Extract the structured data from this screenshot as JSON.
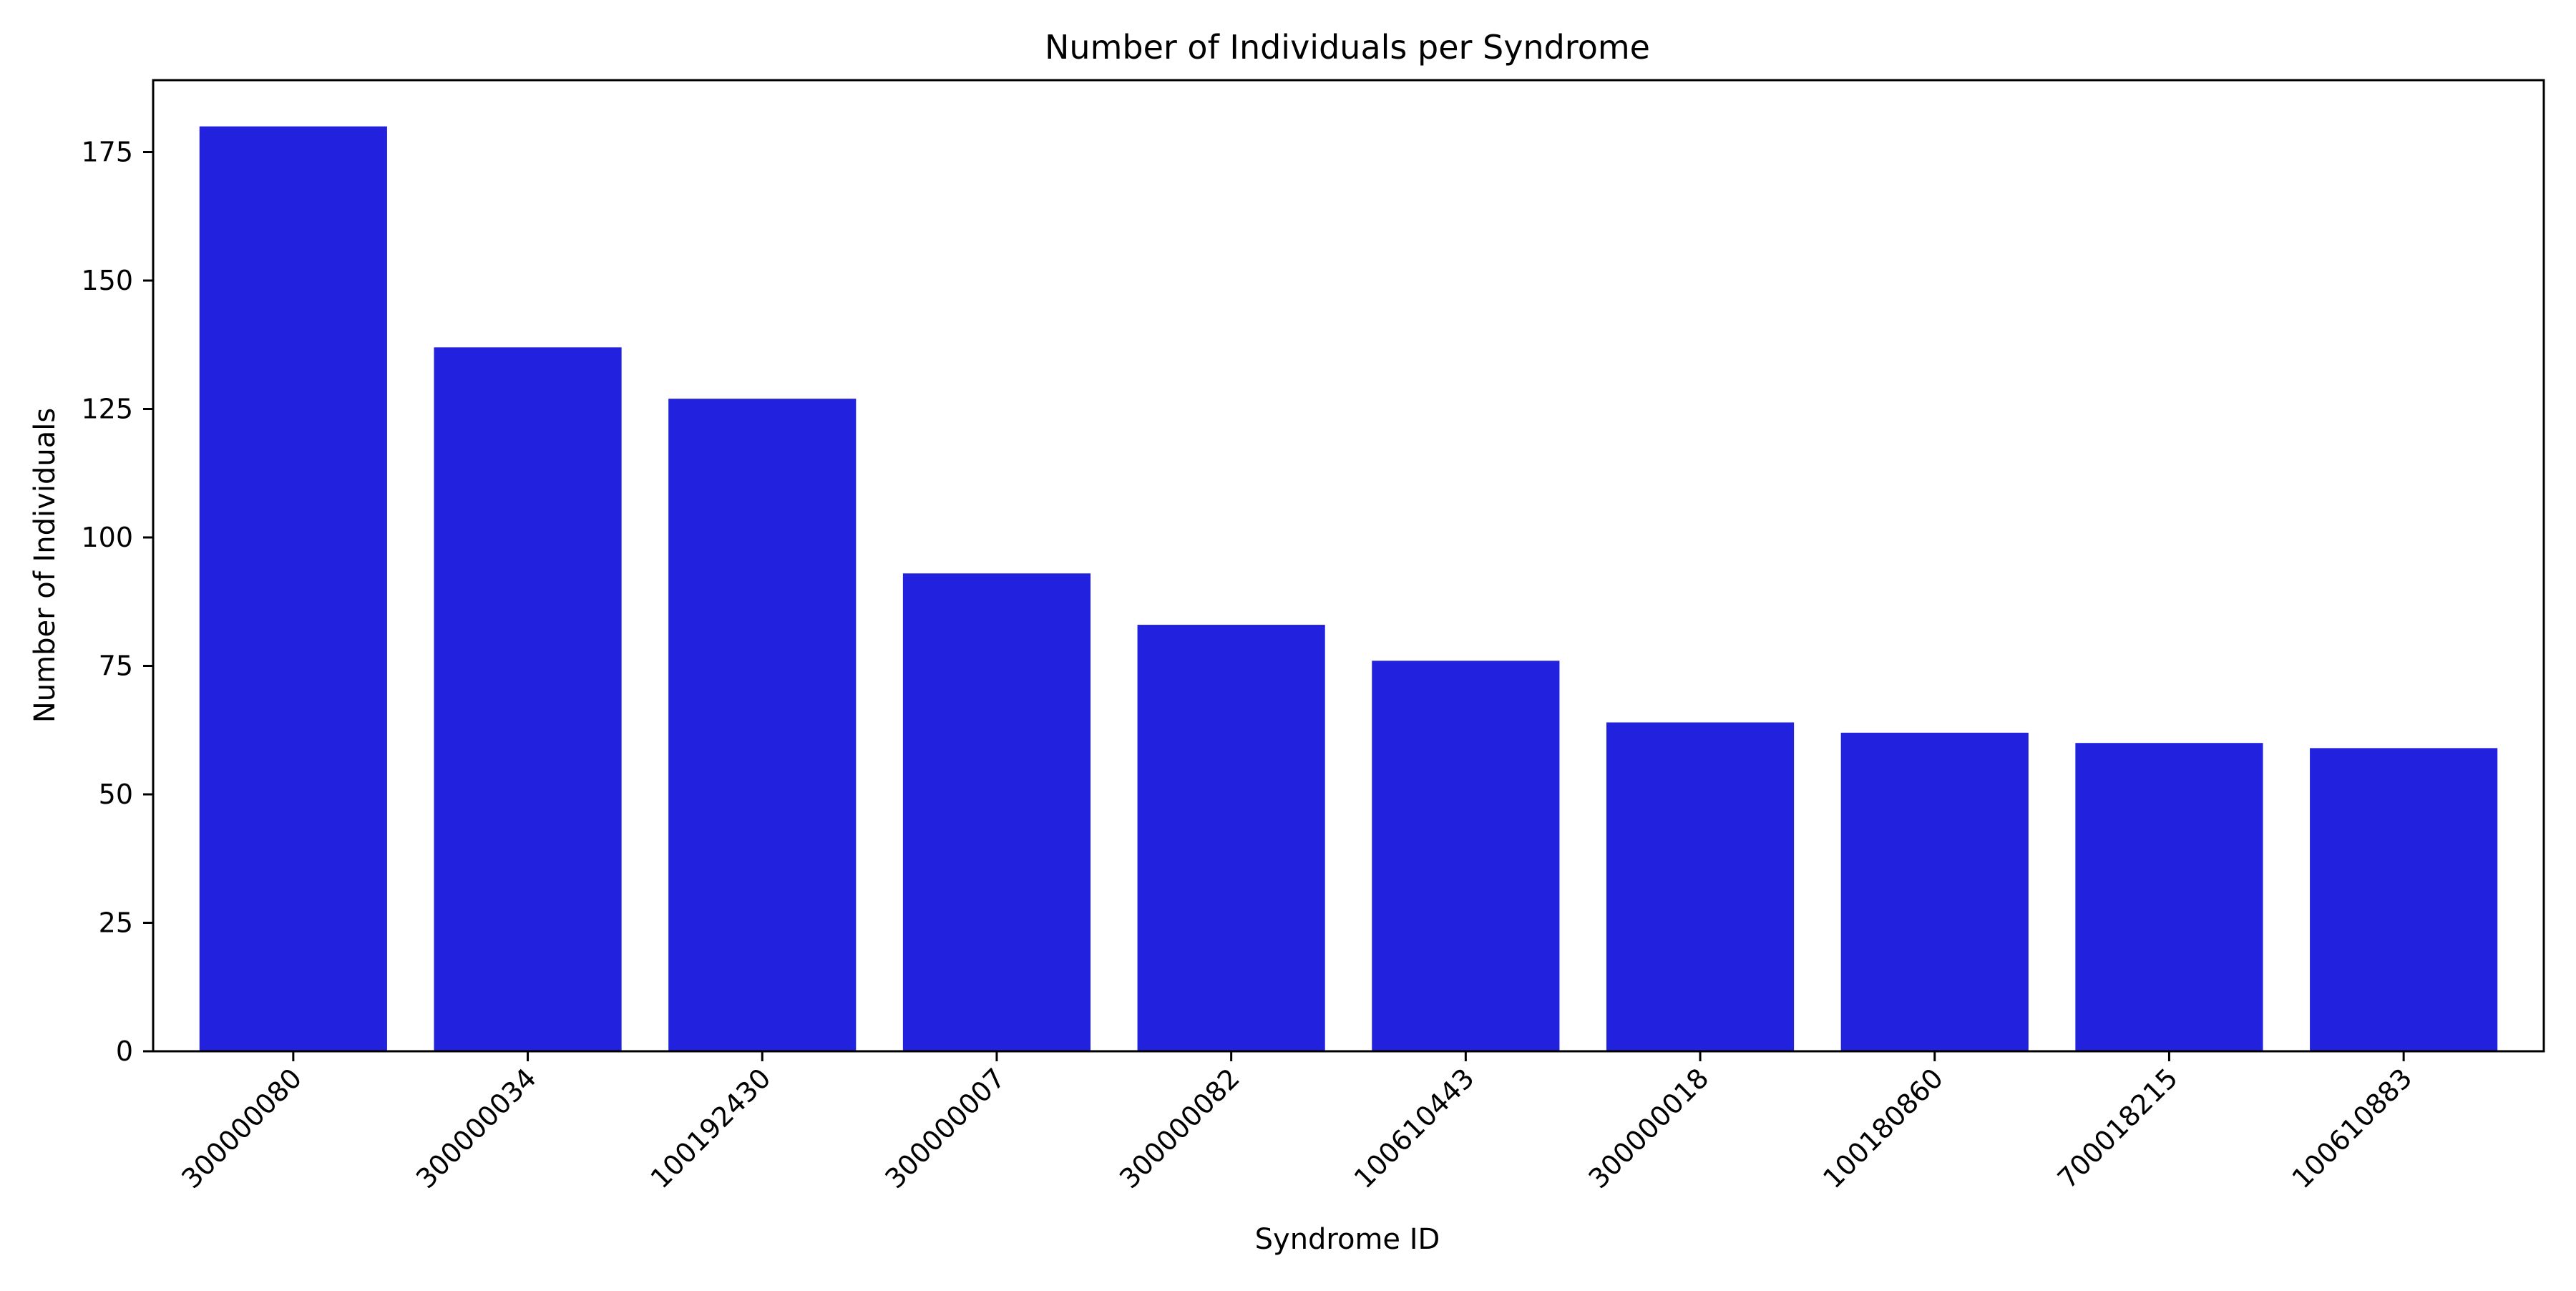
{
  "chart_data": {
    "type": "bar",
    "title": "Number of Individuals per Syndrome",
    "xlabel": "Syndrome ID",
    "ylabel": "Number of Individuals",
    "categories": [
      "300000080",
      "300000034",
      "100192430",
      "300000007",
      "300000082",
      "100610443",
      "300000018",
      "100180860",
      "700018215",
      "100610883"
    ],
    "values": [
      180,
      137,
      127,
      93,
      83,
      76,
      64,
      62,
      60,
      59
    ],
    "ylim": [
      0,
      189
    ],
    "yticks": [
      0,
      25,
      50,
      75,
      100,
      125,
      150,
      175
    ],
    "bar_color": "#2121DE",
    "grid": false,
    "legend": "none",
    "x_tick_rotation": "45 degrees"
  }
}
